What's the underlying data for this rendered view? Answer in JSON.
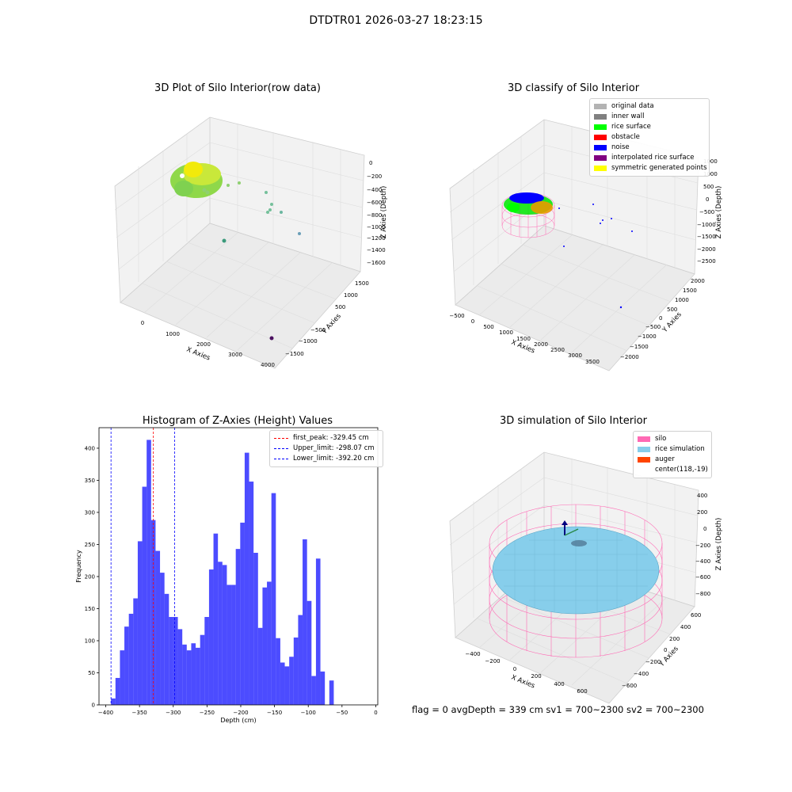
{
  "suptitle": "DTDTR01 2026-03-27 18:23:15",
  "panel1": {
    "title": "3D Plot of Silo Interior(row data)",
    "xlabel": "X Axies",
    "ylabel": "Y Axies",
    "zlabel": "Z Axies (Depth)",
    "xticks": [
      "0",
      "1000",
      "2000",
      "3000",
      "4000"
    ],
    "yticks": [
      "1500",
      "1000",
      "500",
      "−500",
      "−1000",
      "−1500"
    ],
    "zticks": [
      "0",
      "−200",
      "−400",
      "−600",
      "−800",
      "−1000",
      "−1200",
      "−1400",
      "−1600"
    ]
  },
  "panel2": {
    "title": "3D classify of Silo Interior",
    "xlabel": "X Axies",
    "ylabel": "Y Axies",
    "zlabel": "Z Axies (Depth)",
    "xticks": [
      "−500",
      "0",
      "500",
      "1000",
      "1500",
      "2000",
      "2500",
      "3000",
      "3500"
    ],
    "yticks": [
      "2000",
      "1500",
      "1000",
      "500",
      "0",
      "−500",
      "−1000",
      "−1500",
      "−2000"
    ],
    "zticks": [
      "1000",
      "500",
      "0",
      "−500",
      "−1000",
      "−1500",
      "−2000",
      "−2500"
    ],
    "legend": [
      {
        "label": "original data",
        "color": "#b3b3b3"
      },
      {
        "label": "inner wall",
        "color": "#808080"
      },
      {
        "label": "rice surface",
        "color": "#00ff00"
      },
      {
        "label": "obstacle",
        "color": "#ff0000"
      },
      {
        "label": "noise",
        "color": "#0000ff"
      },
      {
        "label": "interpolated rice surface",
        "color": "#800080"
      },
      {
        "label": "symmetric generated points",
        "color": "#ffff00"
      }
    ]
  },
  "chart_data": {
    "type": "bar",
    "title": "Histogram of Z-Axies (Height) Values",
    "xlabel": "Depth (cm)",
    "ylabel": "Frequency",
    "xlim": [
      -410,
      3
    ],
    "ylim": [
      0,
      432
    ],
    "xticks": [
      -400,
      -350,
      -300,
      -250,
      -200,
      -150,
      -100,
      -50,
      0
    ],
    "yticks": [
      0,
      50,
      100,
      150,
      200,
      250,
      300,
      350,
      400
    ],
    "bar_color": "#0000ff",
    "bin_start": -392.2,
    "bin_width": 6.6,
    "values": [
      10,
      42,
      85,
      122,
      142,
      166,
      255,
      340,
      413,
      288,
      240,
      206,
      173,
      137,
      137,
      118,
      94,
      85,
      96,
      89,
      109,
      137,
      211,
      267,
      223,
      218,
      187,
      187,
      243,
      284,
      393,
      348,
      237,
      120,
      183,
      192,
      330,
      104,
      66,
      60,
      75,
      105,
      140,
      258,
      162,
      45,
      228,
      52,
      0,
      38
    ],
    "lines": [
      {
        "label": "first_peak: -329.45 cm",
        "x": -329.45,
        "color": "#ff0000"
      },
      {
        "label": "Upper_limit: -298.07 cm",
        "x": -298.07,
        "color": "#0000ff"
      },
      {
        "label": "Lower_limit: -392.20 cm",
        "x": -392.2,
        "color": "#0000ff"
      }
    ],
    "legend_loc": "upper right"
  },
  "panel4": {
    "title": "3D simulation of Silo Interior",
    "xlabel": "X Axies",
    "ylabel": "Y Axies",
    "zlabel": "Z Axies (Depth)",
    "xticks": [
      "−400",
      "−200",
      "0",
      "200",
      "400",
      "600"
    ],
    "yticks": [
      "600",
      "400",
      "200",
      "0",
      "−200",
      "−400",
      "−600"
    ],
    "zticks": [
      "400",
      "200",
      "0",
      "−200",
      "−400",
      "−600",
      "−800"
    ],
    "legend": [
      {
        "label": "silo",
        "color": "#ff69b4"
      },
      {
        "label": "rice simulation",
        "color": "#87ceeb"
      },
      {
        "label": "auger",
        "color": "#ff4500"
      },
      {
        "label": "center(118,-19)",
        "color": ""
      }
    ]
  },
  "footer": "flag = 0     avgDepth = 339 cm  sv1 = 700~2300  sv2 = 700~2300"
}
